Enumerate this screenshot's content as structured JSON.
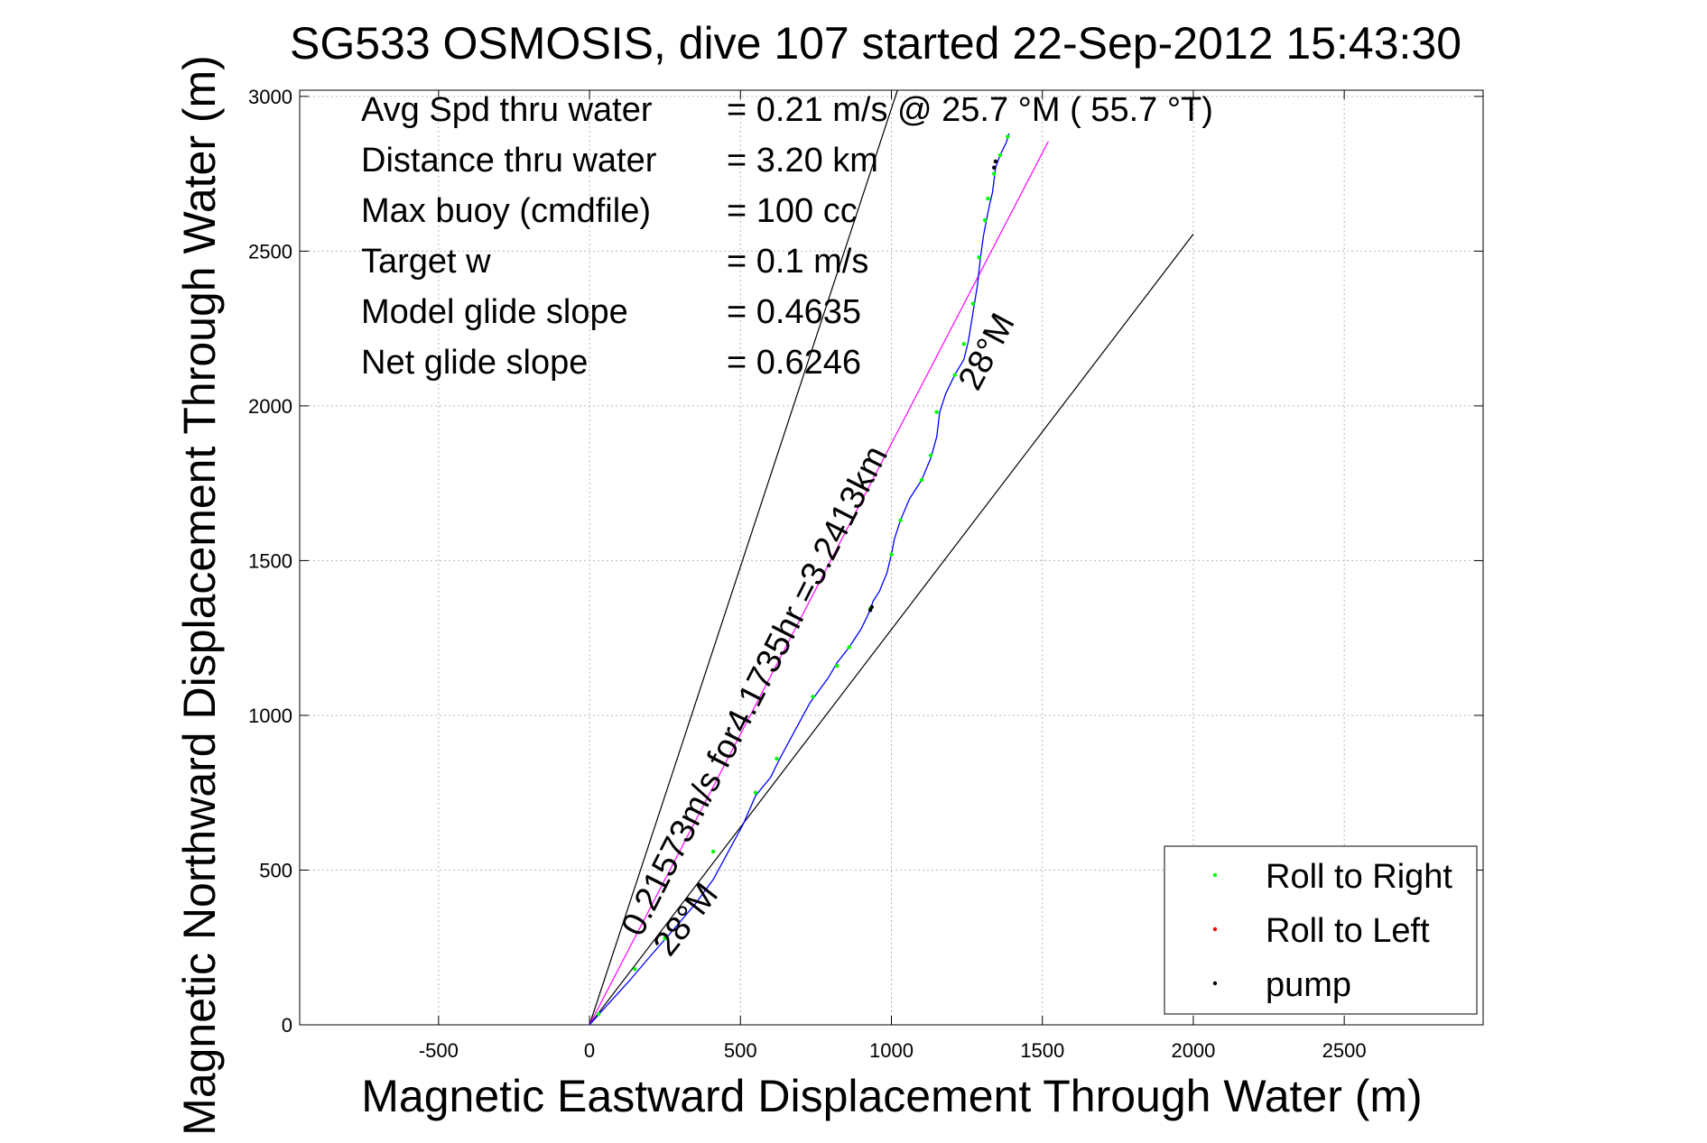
{
  "chart_data": {
    "type": "line",
    "title": "SG533 OSMOSIS, dive 107 started 22-Sep-2012 15:43:30",
    "xlabel": "Magnetic Eastward Displacement Through Water (m)",
    "ylabel": "Magnetic Northward Displacement Through Water (m)",
    "xlim": [
      -960,
      2960
    ],
    "ylim": [
      0,
      3020
    ],
    "xticks": [
      -500,
      0,
      500,
      1000,
      1500,
      2000,
      2500
    ],
    "yticks": [
      0,
      500,
      1000,
      1500,
      2000,
      2500,
      3000
    ],
    "xtick_labels": [
      "-500",
      "0",
      "500",
      "1000",
      "1500",
      "2000",
      "2500"
    ],
    "ytick_labels": [
      "0",
      "500",
      "1000",
      "1500",
      "2000",
      "2500",
      "3000"
    ],
    "grid": true,
    "legend_position": "bottom-right",
    "info_lines": [
      {
        "label": "Avg Spd thru water",
        "value": "=  0.21 m/s @  25.7 °M ( 55.7 °T)"
      },
      {
        "label": "Distance thru water",
        "value": "=  3.20 km"
      },
      {
        "label": "Max buoy (cmdfile)",
        "value": "= 100 cc"
      },
      {
        "label": "Target w",
        "value": "= 0.1 m/s"
      },
      {
        "label": "Model glide slope",
        "value": "= 0.4635"
      },
      {
        "label": "Net glide slope",
        "value": "= 0.6246"
      }
    ],
    "annotations": {
      "speed_line": "0.21573m/s for4.1735hr =3.2413km",
      "heading_low": "28°M",
      "heading_high": "28°M"
    },
    "reference_lines": [
      {
        "color": "#000000",
        "points": [
          [
            0,
            0
          ],
          [
            1020,
            3020
          ]
        ]
      },
      {
        "color": "#000000",
        "points": [
          [
            0,
            0
          ],
          [
            2000,
            2555
          ]
        ]
      },
      {
        "color": "#ff00ff",
        "points": [
          [
            0,
            0
          ],
          [
            1520,
            2855
          ]
        ]
      }
    ],
    "series": [
      {
        "name": "track",
        "color": "#0000ff",
        "points": [
          [
            0,
            0
          ],
          [
            60,
            65
          ],
          [
            130,
            140
          ],
          [
            200,
            220
          ],
          [
            280,
            310
          ],
          [
            350,
            390
          ],
          [
            410,
            470
          ],
          [
            460,
            560
          ],
          [
            510,
            650
          ],
          [
            550,
            740
          ],
          [
            600,
            800
          ],
          [
            630,
            860
          ],
          [
            680,
            950
          ],
          [
            730,
            1040
          ],
          [
            790,
            1120
          ],
          [
            820,
            1170
          ],
          [
            860,
            1220
          ],
          [
            900,
            1280
          ],
          [
            925,
            1330
          ],
          [
            940,
            1370
          ],
          [
            960,
            1400
          ],
          [
            985,
            1460
          ],
          [
            1000,
            1520
          ],
          [
            1010,
            1570
          ],
          [
            1030,
            1630
          ],
          [
            1060,
            1700
          ],
          [
            1100,
            1760
          ],
          [
            1130,
            1830
          ],
          [
            1150,
            1900
          ],
          [
            1160,
            1980
          ],
          [
            1180,
            2040
          ],
          [
            1210,
            2100
          ],
          [
            1240,
            2150
          ],
          [
            1255,
            2210
          ],
          [
            1270,
            2300
          ],
          [
            1285,
            2390
          ],
          [
            1295,
            2480
          ],
          [
            1305,
            2550
          ],
          [
            1315,
            2600
          ],
          [
            1325,
            2650
          ],
          [
            1335,
            2690
          ],
          [
            1340,
            2730
          ],
          [
            1345,
            2770
          ],
          [
            1360,
            2810
          ],
          [
            1380,
            2850
          ],
          [
            1390,
            2880
          ]
        ]
      }
    ],
    "markers": [
      {
        "name": "Roll to Right",
        "color": "#00ff00",
        "points": [
          [
            30,
            35
          ],
          [
            150,
            180
          ],
          [
            250,
            280
          ],
          [
            410,
            560
          ],
          [
            550,
            750
          ],
          [
            620,
            860
          ],
          [
            740,
            1060
          ],
          [
            820,
            1160
          ],
          [
            860,
            1220
          ],
          [
            930,
            1345
          ],
          [
            1000,
            1520
          ],
          [
            1030,
            1630
          ],
          [
            1100,
            1760
          ],
          [
            1130,
            1840
          ],
          [
            1150,
            1980
          ],
          [
            1210,
            2100
          ],
          [
            1240,
            2200
          ],
          [
            1270,
            2330
          ],
          [
            1290,
            2480
          ],
          [
            1310,
            2600
          ],
          [
            1320,
            2670
          ],
          [
            1340,
            2750
          ],
          [
            1360,
            2810
          ],
          [
            1385,
            2870
          ]
        ]
      },
      {
        "name": "Roll to Left",
        "color": "#ff0000",
        "points": []
      },
      {
        "name": "pump",
        "color": "#000000",
        "points": [
          [
            930,
            1340
          ],
          [
            935,
            1350
          ],
          [
            1340,
            2770
          ],
          [
            1345,
            2790
          ]
        ]
      }
    ],
    "legend": [
      {
        "label": "Roll to Right",
        "color": "#00ff00"
      },
      {
        "label": "Roll to Left",
        "color": "#ff0000"
      },
      {
        "label": "pump",
        "color": "#000000"
      }
    ]
  }
}
